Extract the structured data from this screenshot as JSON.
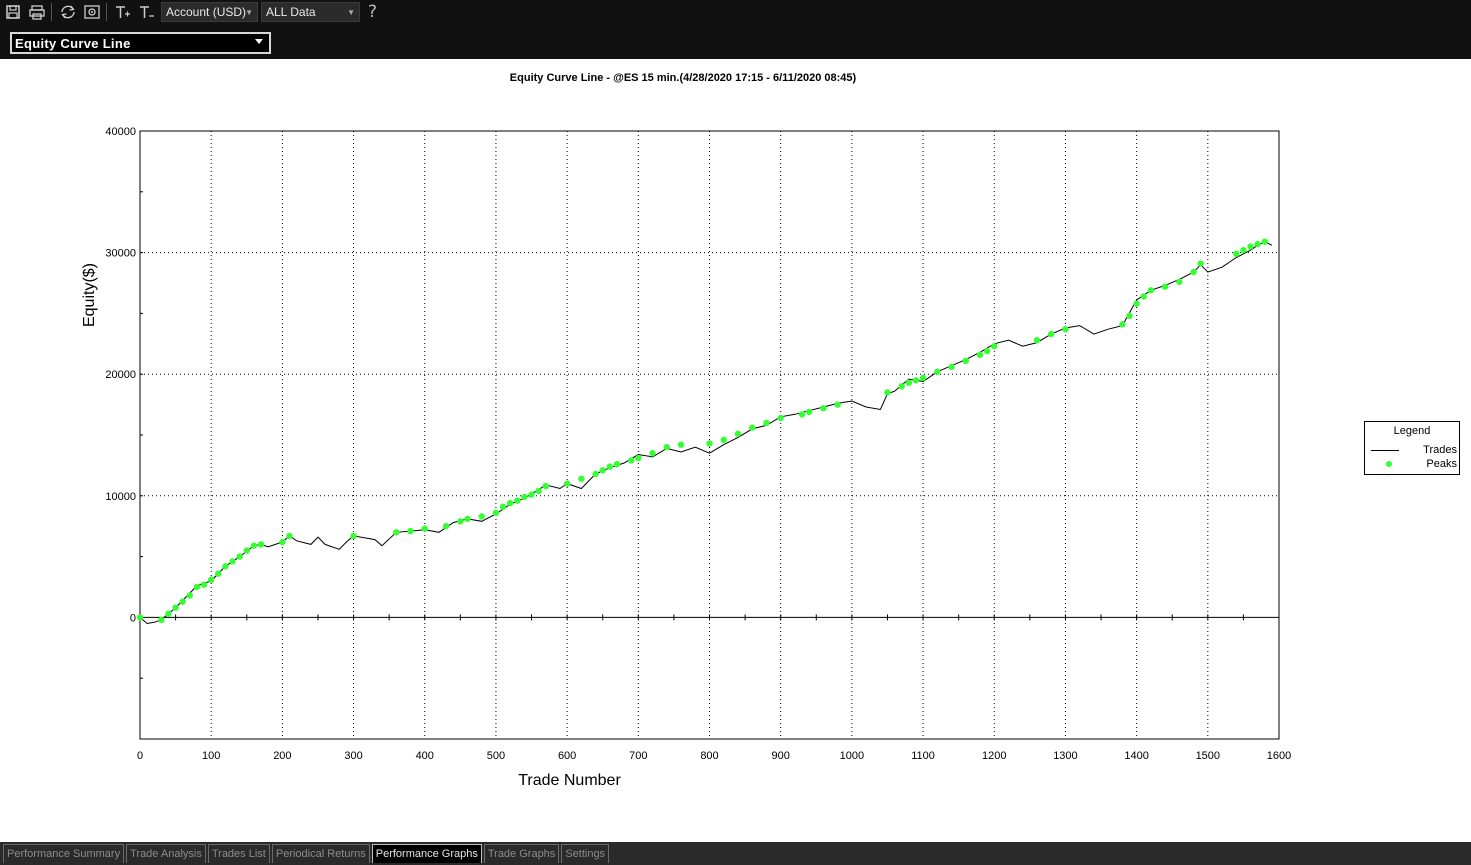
{
  "toolbar": {
    "account_select": "Account (USD)",
    "data_select": "ALL Data",
    "help_label": "?"
  },
  "graph_select": "Equity Curve Line",
  "legend": {
    "title": "Legend",
    "trades": "Trades",
    "peaks": "Peaks"
  },
  "tabs": [
    {
      "label": "Performance Summary"
    },
    {
      "label": "Trade Analysis"
    },
    {
      "label": "Trades List"
    },
    {
      "label": "Periodical Returns"
    },
    {
      "label": "Performance Graphs"
    },
    {
      "label": "Trade Graphs"
    },
    {
      "label": "Settings"
    }
  ],
  "active_tab": "Performance Graphs",
  "chart_data": {
    "type": "line",
    "title": "Equity Curve Line - @ES 15 min.(4/28/2020 17:15 - 6/11/2020 08:45)",
    "xlabel": "Trade Number",
    "ylabel": "Equity($)",
    "xlim": [
      0,
      1600
    ],
    "ylim": [
      -10000,
      40000
    ],
    "xticks": [
      0,
      100,
      200,
      300,
      400,
      500,
      600,
      700,
      800,
      900,
      1000,
      1100,
      1200,
      1300,
      1400,
      1500,
      1600
    ],
    "yticks": [
      0,
      10000,
      20000,
      30000,
      40000
    ],
    "grid": true,
    "legend_position": "right",
    "colors": {
      "trades": "#000000",
      "peaks": "#33ff33"
    },
    "series": [
      {
        "name": "Trades",
        "x": [
          0,
          10,
          20,
          30,
          40,
          50,
          60,
          70,
          80,
          100,
          120,
          140,
          160,
          170,
          180,
          200,
          210,
          220,
          240,
          250,
          260,
          280,
          290,
          300,
          320,
          330,
          340,
          360,
          380,
          400,
          420,
          440,
          460,
          480,
          500,
          520,
          540,
          560,
          570,
          590,
          600,
          620,
          640,
          660,
          680,
          700,
          720,
          740,
          760,
          780,
          800,
          820,
          840,
          860,
          880,
          900,
          920,
          940,
          960,
          980,
          1000,
          1020,
          1040,
          1050,
          1060,
          1080,
          1100,
          1120,
          1140,
          1160,
          1180,
          1200,
          1220,
          1240,
          1260,
          1280,
          1300,
          1320,
          1340,
          1360,
          1380,
          1400,
          1420,
          1440,
          1460,
          1480,
          1490,
          1500,
          1520,
          1540,
          1560,
          1570,
          1580,
          1590
        ],
        "values": [
          0,
          -500,
          -400,
          -200,
          300,
          800,
          1400,
          2000,
          2600,
          3000,
          4200,
          5000,
          5900,
          6000,
          5800,
          6200,
          6700,
          6300,
          6000,
          6600,
          6000,
          5600,
          6200,
          6700,
          6500,
          6400,
          5900,
          7000,
          7100,
          7200,
          7000,
          7800,
          8100,
          7900,
          8500,
          9300,
          9800,
          10500,
          10900,
          10600,
          11000,
          10600,
          11800,
          12300,
          12700,
          13400,
          13200,
          13900,
          13600,
          14000,
          13500,
          14200,
          14800,
          15500,
          15800,
          16500,
          16700,
          17000,
          17300,
          17600,
          17800,
          17300,
          17100,
          18400,
          18600,
          19600,
          19400,
          20200,
          20700,
          21200,
          21800,
          22500,
          22800,
          22300,
          22600,
          23300,
          23800,
          24000,
          23300,
          23700,
          24000,
          26100,
          26900,
          27300,
          27800,
          28400,
          29000,
          28400,
          28800,
          29600,
          30200,
          30600,
          30900,
          30600
        ]
      },
      {
        "name": "Peaks",
        "x": [
          0,
          30,
          40,
          50,
          60,
          70,
          80,
          90,
          100,
          110,
          120,
          130,
          140,
          150,
          160,
          170,
          200,
          210,
          300,
          360,
          380,
          400,
          430,
          450,
          460,
          480,
          500,
          510,
          520,
          530,
          540,
          550,
          560,
          570,
          600,
          620,
          640,
          650,
          660,
          670,
          690,
          700,
          720,
          740,
          760,
          800,
          820,
          840,
          860,
          880,
          900,
          930,
          940,
          960,
          980,
          1050,
          1070,
          1080,
          1090,
          1100,
          1120,
          1140,
          1160,
          1180,
          1190,
          1200,
          1260,
          1280,
          1300,
          1380,
          1390,
          1400,
          1410,
          1420,
          1440,
          1460,
          1480,
          1490,
          1540,
          1550,
          1560,
          1570,
          1580
        ],
        "values": [
          0,
          -200,
          300,
          800,
          1300,
          1800,
          2500,
          2700,
          3100,
          3600,
          4200,
          4600,
          5000,
          5500,
          5900,
          6000,
          6200,
          6700,
          6700,
          7000,
          7100,
          7300,
          7500,
          7900,
          8100,
          8300,
          8600,
          9100,
          9400,
          9600,
          9900,
          10100,
          10400,
          10800,
          11000,
          11400,
          11800,
          12100,
          12400,
          12600,
          12900,
          13100,
          13500,
          14000,
          14200,
          14300,
          14600,
          15100,
          15600,
          16000,
          16400,
          16700,
          16900,
          17200,
          17500,
          18500,
          19000,
          19300,
          19500,
          19700,
          20200,
          20600,
          21100,
          21600,
          21900,
          22300,
          22800,
          23300,
          23700,
          24100,
          24800,
          25800,
          26400,
          26900,
          27200,
          27600,
          28400,
          29100,
          29900,
          30200,
          30500,
          30700,
          30900
        ]
      }
    ]
  }
}
